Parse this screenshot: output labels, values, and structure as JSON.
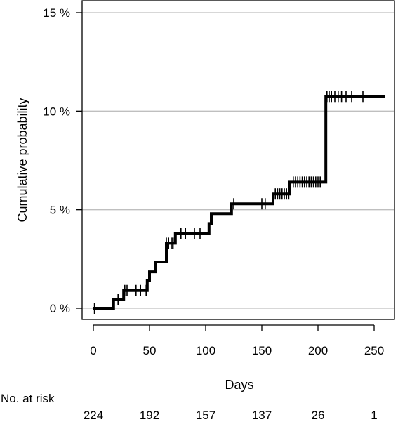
{
  "chart_data": {
    "type": "line",
    "title": "",
    "xlabel": "Days",
    "ylabel": "Cumulative probability",
    "xlim": [
      0,
      260
    ],
    "ylim": [
      0,
      15
    ],
    "x_ticks": [
      0,
      50,
      100,
      150,
      200,
      250
    ],
    "x_tick_labels": [
      "0",
      "50",
      "100",
      "150",
      "200",
      "250"
    ],
    "y_ticks": [
      0,
      5,
      10,
      15
    ],
    "y_tick_labels": [
      "0 %",
      "5 %",
      "10 %",
      "15 %"
    ],
    "grid": "horizontal",
    "series": [
      {
        "step_points": [
          [
            0,
            0
          ],
          [
            18,
            0
          ],
          [
            18,
            0.45
          ],
          [
            27,
            0.45
          ],
          [
            27,
            0.9
          ],
          [
            48,
            0.9
          ],
          [
            48,
            1.4
          ],
          [
            50,
            1.4
          ],
          [
            50,
            1.85
          ],
          [
            55,
            1.85
          ],
          [
            55,
            2.35
          ],
          [
            65,
            2.35
          ],
          [
            65,
            3.3
          ],
          [
            73,
            3.3
          ],
          [
            73,
            3.8
          ],
          [
            103,
            3.8
          ],
          [
            103,
            4.3
          ],
          [
            105,
            4.3
          ],
          [
            105,
            4.8
          ],
          [
            123,
            4.8
          ],
          [
            123,
            5.3
          ],
          [
            160,
            5.3
          ],
          [
            160,
            5.8
          ],
          [
            175,
            5.8
          ],
          [
            175,
            6.4
          ],
          [
            207,
            6.4
          ],
          [
            207,
            10.75
          ],
          [
            260,
            10.75
          ]
        ],
        "censor_x": [
          1,
          22,
          28,
          30,
          38,
          42,
          47,
          65,
          67,
          70,
          71,
          78,
          82,
          90,
          95,
          125,
          150,
          153,
          162,
          164,
          166,
          168,
          170,
          172,
          174,
          178,
          180,
          182,
          184,
          186,
          188,
          190,
          192,
          194,
          196,
          198,
          200,
          202,
          208,
          210,
          212,
          215,
          218,
          221,
          225,
          230,
          240
        ]
      }
    ],
    "risk_table": {
      "label": "No. at risk",
      "x": [
        0,
        50,
        100,
        150,
        200,
        250
      ],
      "counts": [
        "224",
        "192",
        "157",
        "137",
        "26",
        "1"
      ]
    }
  }
}
